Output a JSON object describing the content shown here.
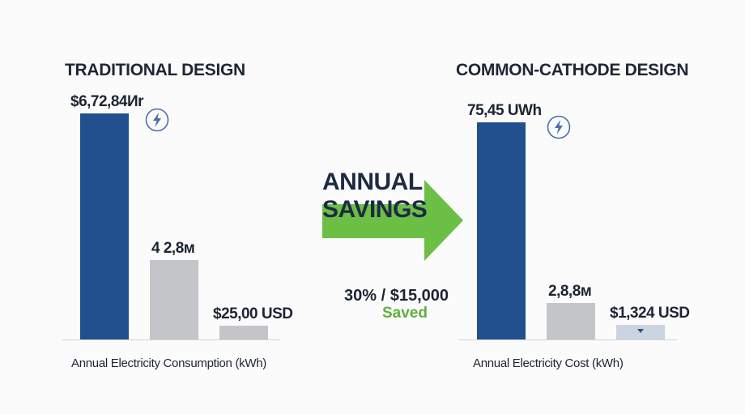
{
  "colors": {
    "primary_bar": "#22508f",
    "secondary_bar": "#c3c5c9",
    "highlight_bar": "#c9d4e0",
    "arrow": "#6cbf45",
    "saved_text": "#5fb040",
    "icon": "#4a6fa8"
  },
  "savings": {
    "headline_line1": "ANNUAL",
    "headline_line2": "SAVINGS",
    "amount": "30% / $15,000",
    "saved_label": "Saved",
    "arrow_icon": "right-arrow-icon"
  },
  "chart_data": [
    {
      "type": "bar",
      "title": "TRADITIONAL DESIGN",
      "xlabel": "Annual Electricity Consumption (kWh)",
      "ylabel": "",
      "ylim": [
        0,
        100
      ],
      "grid": false,
      "icon": "lightning-bolt-icon",
      "bars": [
        {
          "label": "$6,72,84Иr",
          "value": 100,
          "color": "#22508f"
        },
        {
          "label": "4 2,8м",
          "value": 35,
          "color": "#c3c5c9"
        },
        {
          "label": "$25,00 USD",
          "value": 6,
          "color": "#c3c5c9"
        }
      ]
    },
    {
      "type": "bar",
      "title": "COMMON-CATHODE DESIGN",
      "xlabel": "Annual Electricity Cost (kWh)",
      "ylabel": "",
      "ylim": [
        0,
        100
      ],
      "grid": false,
      "icon": "lightning-bolt-icon",
      "bars": [
        {
          "label": "75,45 UWh",
          "value": 96,
          "color": "#22508f"
        },
        {
          "label": "2,8,8м",
          "value": 16,
          "color": "#c3c5c9"
        },
        {
          "label": "$1,324 USD",
          "value": 6.5,
          "color": "#c9d4e0",
          "marker": "down-triangle-icon"
        }
      ]
    }
  ]
}
